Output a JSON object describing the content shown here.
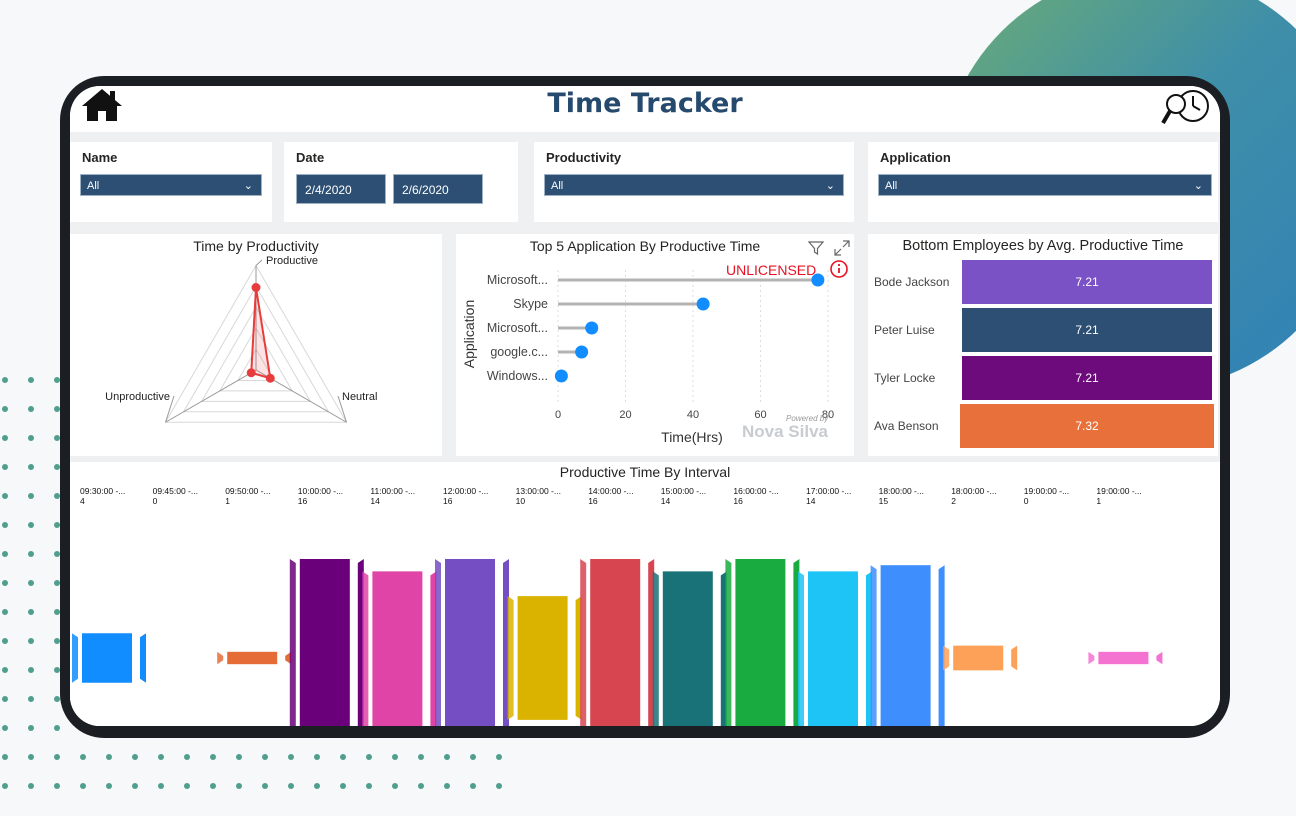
{
  "page": {
    "title": "Time Tracker"
  },
  "filters": {
    "name": {
      "label": "Name",
      "value": "All"
    },
    "date": {
      "label": "Date",
      "start": "2/4/2020",
      "end": "2/6/2020"
    },
    "productivity": {
      "label": "Productivity",
      "value": "All"
    },
    "application": {
      "label": "Application",
      "value": "All"
    }
  },
  "productivity_chart": {
    "title": "Time by Productivity",
    "chart_data": {
      "type": "radar",
      "categories": [
        "Productive",
        "Neutral",
        "Unproductive"
      ],
      "values": [
        0.75,
        0.15,
        0.05
      ]
    }
  },
  "top_apps": {
    "title": "Top 5 Application By Productive Time",
    "unlicensed": "UNLICENSED",
    "powered_by": "Powered by",
    "brand": "Nova Silva",
    "chart_data": {
      "type": "lollipop",
      "categories": [
        "Microsoft...",
        "Skype",
        "Microsoft...",
        "google.c...",
        "Windows..."
      ],
      "values": [
        77,
        43,
        10,
        7,
        1
      ],
      "xlabel": "Time(Hrs)",
      "ylabel": "Application",
      "xticks": [
        "0",
        "20",
        "40",
        "60",
        "80"
      ],
      "xlim": [
        0,
        80
      ]
    }
  },
  "bottom_employees": {
    "title": "Bottom Employees by Avg. Productive Time",
    "chart_data": {
      "type": "bar",
      "categories": [
        "Bode Jackson",
        "Peter Luise",
        "Tyler Locke",
        "Ava Benson"
      ],
      "values": [
        "7.21",
        "7.21",
        "7.21",
        "7.32"
      ],
      "colors": [
        "#7a52c6",
        "#2c4f73",
        "#6d0b7d",
        "#e8703a"
      ]
    }
  },
  "interval_chart": {
    "title": "Productive Time By Interval",
    "chart_data": {
      "type": "funnel-flow",
      "categories": [
        "09:30:00 -...",
        "09:45:00 -...",
        "09:50:00 -...",
        "10:00:00 -...",
        "11:00:00 -...",
        "12:00:00 -...",
        "13:00:00 -...",
        "14:00:00 -...",
        "15:00:00 -...",
        "16:00:00 -...",
        "17:00:00 -...",
        "18:00:00 -...",
        "18:00:00 -...",
        "19:00:00 -...",
        "19:00:00 -..."
      ],
      "values": [
        "4",
        "0",
        "1",
        "16",
        "14",
        "16",
        "10",
        "16",
        "14",
        "16",
        "14",
        "15",
        "2",
        "0",
        "1"
      ],
      "colors": [
        "#118dff",
        "#e66c37",
        "#e66c37",
        "#6b007b",
        "#e044a7",
        "#744ec2",
        "#d9b300",
        "#d64550",
        "#197278",
        "#1aab40",
        "#1dc4f5",
        "#3e8efd",
        "#fea158",
        "#f472d0",
        "#f472d0"
      ]
    }
  }
}
